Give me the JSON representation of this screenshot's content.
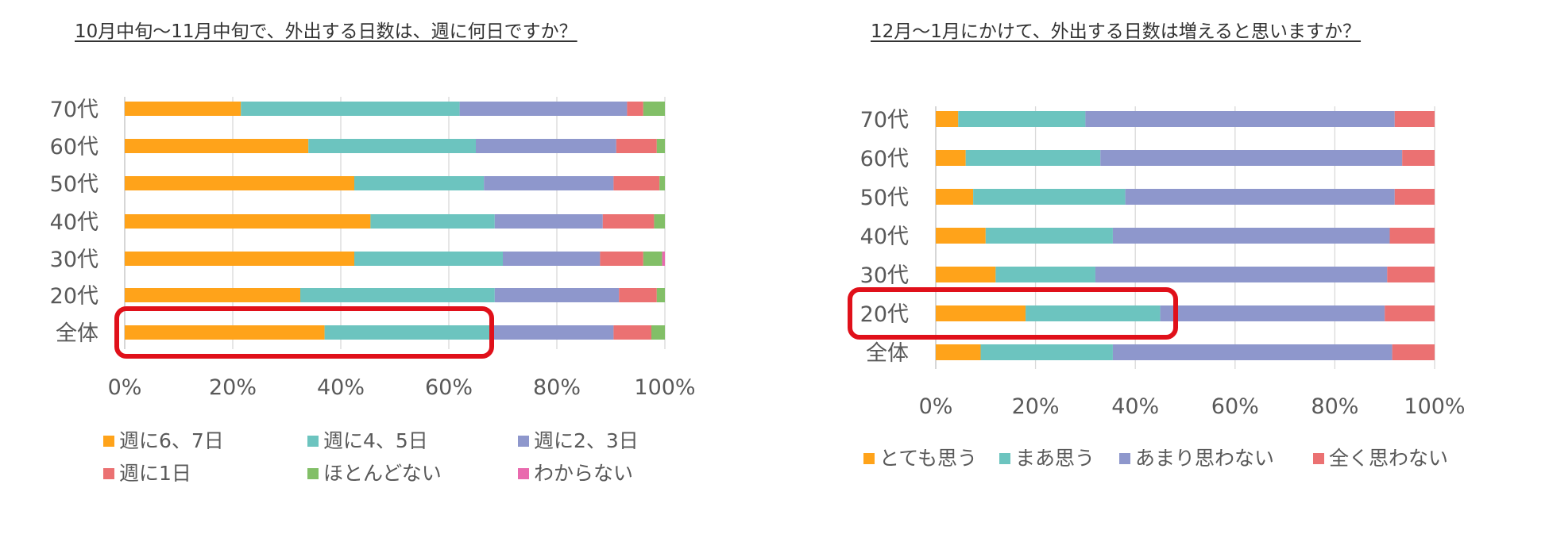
{
  "colors": {
    "orange": "#FFA31A",
    "teal": "#6CC4BF",
    "purple": "#8E97CC",
    "red": "#EB7172",
    "green": "#82BF67",
    "pink": "#E96AAE",
    "highlight": "#E0101A",
    "grid": "#D9D9D9"
  },
  "chart_data": [
    {
      "type": "bar",
      "orientation": "horizontal",
      "stacked": "percent",
      "title": "10月中旬～11月中旬で、外出する日数は、週に何日ですか？",
      "categories": [
        "70代",
        "60代",
        "50代",
        "40代",
        "30代",
        "20代",
        "全体"
      ],
      "xlim": [
        0,
        100
      ],
      "xticks": [
        "0%",
        "20%",
        "40%",
        "60%",
        "80%",
        "100%"
      ],
      "highlight_category": "全体",
      "series": [
        {
          "name": "週に6、7日",
          "color": "#FFA31A",
          "values": [
            21.5,
            34,
            42.5,
            45.5,
            42.5,
            32.5,
            37
          ]
        },
        {
          "name": "週に4、5日",
          "color": "#6CC4BF",
          "values": [
            40.5,
            31,
            24,
            23,
            27.5,
            36,
            31
          ]
        },
        {
          "name": "週に2、3日",
          "color": "#8E97CC",
          "values": [
            31,
            26,
            24,
            20,
            18,
            23,
            22.5
          ]
        },
        {
          "name": "週に1日",
          "color": "#EB7172",
          "values": [
            3,
            7.5,
            8.5,
            9.5,
            8,
            7,
            7
          ]
        },
        {
          "name": "ほとんどない",
          "color": "#82BF67",
          "values": [
            4,
            1.5,
            1,
            2,
            3.5,
            1.5,
            2.5
          ]
        },
        {
          "name": "わからない",
          "color": "#E96AAE",
          "values": [
            0,
            0,
            0,
            0,
            0.5,
            0,
            0
          ]
        }
      ]
    },
    {
      "type": "bar",
      "orientation": "horizontal",
      "stacked": "percent",
      "title": "12月～1月にかけて、外出する日数は増えると思いますか？",
      "categories": [
        "70代",
        "60代",
        "50代",
        "40代",
        "30代",
        "20代",
        "全体"
      ],
      "xlim": [
        0,
        100
      ],
      "xticks": [
        "0%",
        "20%",
        "40%",
        "60%",
        "80%",
        "100%"
      ],
      "highlight_category": "20代",
      "series": [
        {
          "name": "とても思う",
          "color": "#FFA31A",
          "values": [
            4.5,
            6,
            7.5,
            10,
            12,
            18,
            9
          ]
        },
        {
          "name": "まあ思う",
          "color": "#6CC4BF",
          "values": [
            25.5,
            27,
            30.5,
            25.5,
            20,
            27,
            26.5
          ]
        },
        {
          "name": "あまり思わない",
          "color": "#8E97CC",
          "values": [
            62,
            60.5,
            54,
            55.5,
            58.5,
            45,
            56
          ]
        },
        {
          "name": "全く思わない",
          "color": "#EB7172",
          "values": [
            8,
            6.5,
            8,
            9,
            9.5,
            10,
            8.5
          ]
        }
      ]
    }
  ]
}
